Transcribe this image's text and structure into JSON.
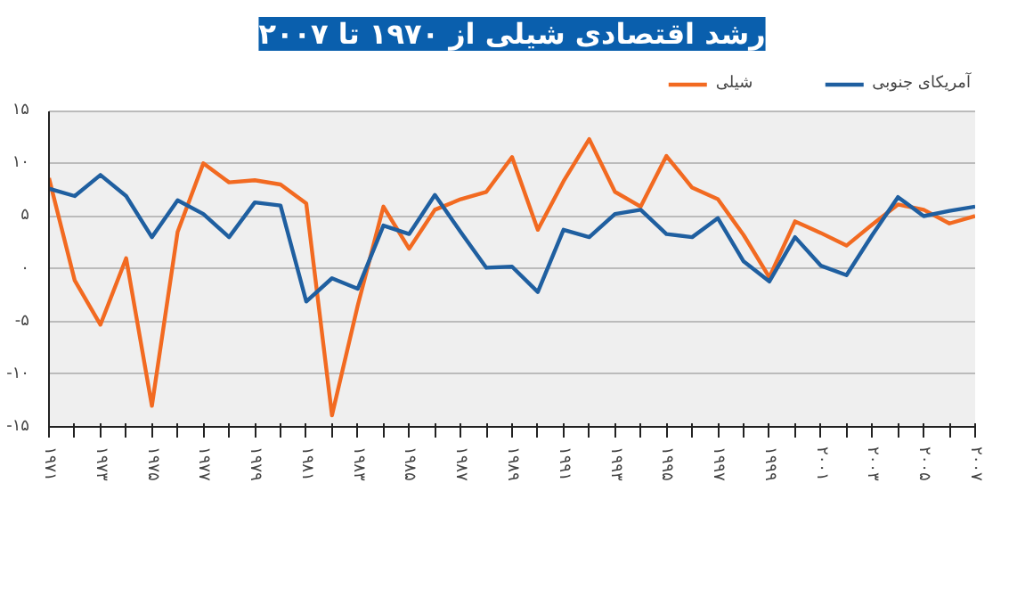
{
  "chart_data": {
    "type": "line",
    "title": "رشد اقتصادی شیلی از ۱۹۷۰ تا ۲۰۰۷",
    "x": [
      1971,
      1972,
      1973,
      1974,
      1975,
      1976,
      1977,
      1978,
      1979,
      1980,
      1981,
      1982,
      1983,
      1984,
      1985,
      1986,
      1987,
      1988,
      1989,
      1990,
      1991,
      1992,
      1993,
      1994,
      1995,
      1996,
      1997,
      1998,
      1999,
      2000,
      2001,
      2002,
      2003,
      2004,
      2005,
      2006,
      2007
    ],
    "series": [
      {
        "name": "شیلی",
        "color": "#f26a21",
        "values": [
          8.6,
          -1.1,
          -5.3,
          1.0,
          -13.0,
          3.5,
          10.0,
          8.2,
          8.4,
          8.0,
          6.2,
          -13.9,
          -3.5,
          5.9,
          1.9,
          5.6,
          6.6,
          7.3,
          10.6,
          3.7,
          8.3,
          12.3,
          7.3,
          5.9,
          10.7,
          7.7,
          6.6,
          3.2,
          -0.8,
          4.5,
          3.4,
          2.2,
          4.2,
          6.1,
          5.6,
          4.3,
          5.0
        ]
      },
      {
        "name": "آمریکای جنوبی",
        "color": "#1f5fa0",
        "values": [
          7.6,
          6.9,
          8.9,
          6.9,
          3.0,
          6.5,
          5.2,
          3.0,
          6.3,
          6.0,
          -3.1,
          -0.9,
          -1.9,
          4.1,
          3.3,
          7.0,
          3.5,
          0.1,
          0.2,
          -2.2,
          3.7,
          3.0,
          5.2,
          5.6,
          3.3,
          3.0,
          4.8,
          0.7,
          -1.2,
          3.0,
          0.3,
          -0.6,
          3.2,
          6.8,
          5.0,
          5.5,
          5.9
        ]
      }
    ],
    "xlim": [
      1971,
      2007
    ],
    "xticks": [
      {
        "value": 1971,
        "label": "۱۹۷۱"
      },
      {
        "value": 1972,
        "label": null
      },
      {
        "value": 1973,
        "label": "۱۹۷۳"
      },
      {
        "value": 1974,
        "label": null
      },
      {
        "value": 1975,
        "label": "۱۹۷۵"
      },
      {
        "value": 1976,
        "label": null
      },
      {
        "value": 1977,
        "label": "۱۹۷۷"
      },
      {
        "value": 1978,
        "label": null
      },
      {
        "value": 1979,
        "label": "۱۹۷۹"
      },
      {
        "value": 1980,
        "label": null
      },
      {
        "value": 1981,
        "label": "۱۹۸۱"
      },
      {
        "value": 1982,
        "label": null
      },
      {
        "value": 1983,
        "label": "۱۹۸۳"
      },
      {
        "value": 1984,
        "label": null
      },
      {
        "value": 1985,
        "label": "۱۹۸۵"
      },
      {
        "value": 1986,
        "label": null
      },
      {
        "value": 1987,
        "label": "۱۹۸۷"
      },
      {
        "value": 1988,
        "label": null
      },
      {
        "value": 1989,
        "label": "۱۹۸۹"
      },
      {
        "value": 1990,
        "label": null
      },
      {
        "value": 1991,
        "label": "۱۹۹۱"
      },
      {
        "value": 1992,
        "label": null
      },
      {
        "value": 1993,
        "label": "۱۹۹۳"
      },
      {
        "value": 1994,
        "label": null
      },
      {
        "value": 1995,
        "label": "۱۹۹۵"
      },
      {
        "value": 1996,
        "label": null
      },
      {
        "value": 1997,
        "label": "۱۹۹۷"
      },
      {
        "value": 1998,
        "label": null
      },
      {
        "value": 1999,
        "label": "۱۹۹۹"
      },
      {
        "value": 2000,
        "label": null
      },
      {
        "value": 2001,
        "label": "۲۰۰۱"
      },
      {
        "value": 2002,
        "label": null
      },
      {
        "value": 2003,
        "label": "۲۰۰۳"
      },
      {
        "value": 2004,
        "label": null
      },
      {
        "value": 2005,
        "label": "۲۰۰۵"
      },
      {
        "value": 2006,
        "label": null
      },
      {
        "value": 2007,
        "label": "۲۰۰۷"
      }
    ],
    "ylim": [
      -15,
      15
    ],
    "yticks": [
      {
        "value": -15,
        "label": "-۱۵"
      },
      {
        "value": -10,
        "label": "-۱۰"
      },
      {
        "value": -5,
        "label": "-۵"
      },
      {
        "value": 0,
        "label": "۰"
      },
      {
        "value": 5,
        "label": "۵"
      },
      {
        "value": 10,
        "label": "۱۰"
      },
      {
        "value": 15,
        "label": "۱۵"
      }
    ],
    "grid": "y",
    "legend": "top right",
    "marker": "none",
    "line_style": "solid"
  }
}
